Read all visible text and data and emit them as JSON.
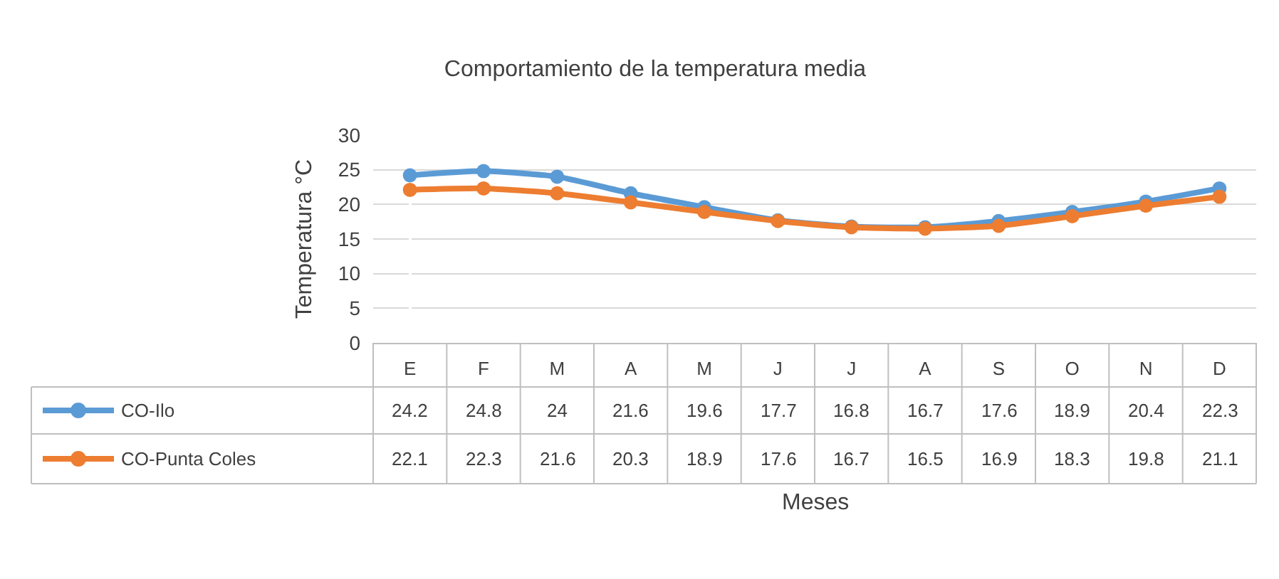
{
  "chart_data": {
    "type": "line",
    "title": "Comportamiento de la temperatura media",
    "annotations": [
      "Meses"
    ],
    "ylabel": "Temperatura °C",
    "categories": [
      "E",
      "F",
      "M",
      "A",
      "M",
      "J",
      "J",
      "A",
      "S",
      "O",
      "N",
      "D"
    ],
    "series": [
      {
        "name": "CO-Ilo",
        "color": "#5b9bd5",
        "values": [
          24.2,
          24.8,
          24,
          21.6,
          19.6,
          17.7,
          16.8,
          16.7,
          17.6,
          18.9,
          20.4,
          22.3
        ]
      },
      {
        "name": "CO-Punta Coles",
        "color": "#ed7d31",
        "values": [
          22.1,
          22.3,
          21.6,
          20.3,
          18.9,
          17.6,
          16.7,
          16.5,
          16.9,
          18.3,
          19.8,
          21.1
        ]
      }
    ],
    "ylim": [
      0,
      30
    ],
    "yticks": [
      0,
      5,
      10,
      15,
      20,
      25,
      30
    ],
    "grid": "y",
    "legend": "bottom",
    "marker": "circle",
    "line_style": "solid",
    "data_labels": true
  }
}
